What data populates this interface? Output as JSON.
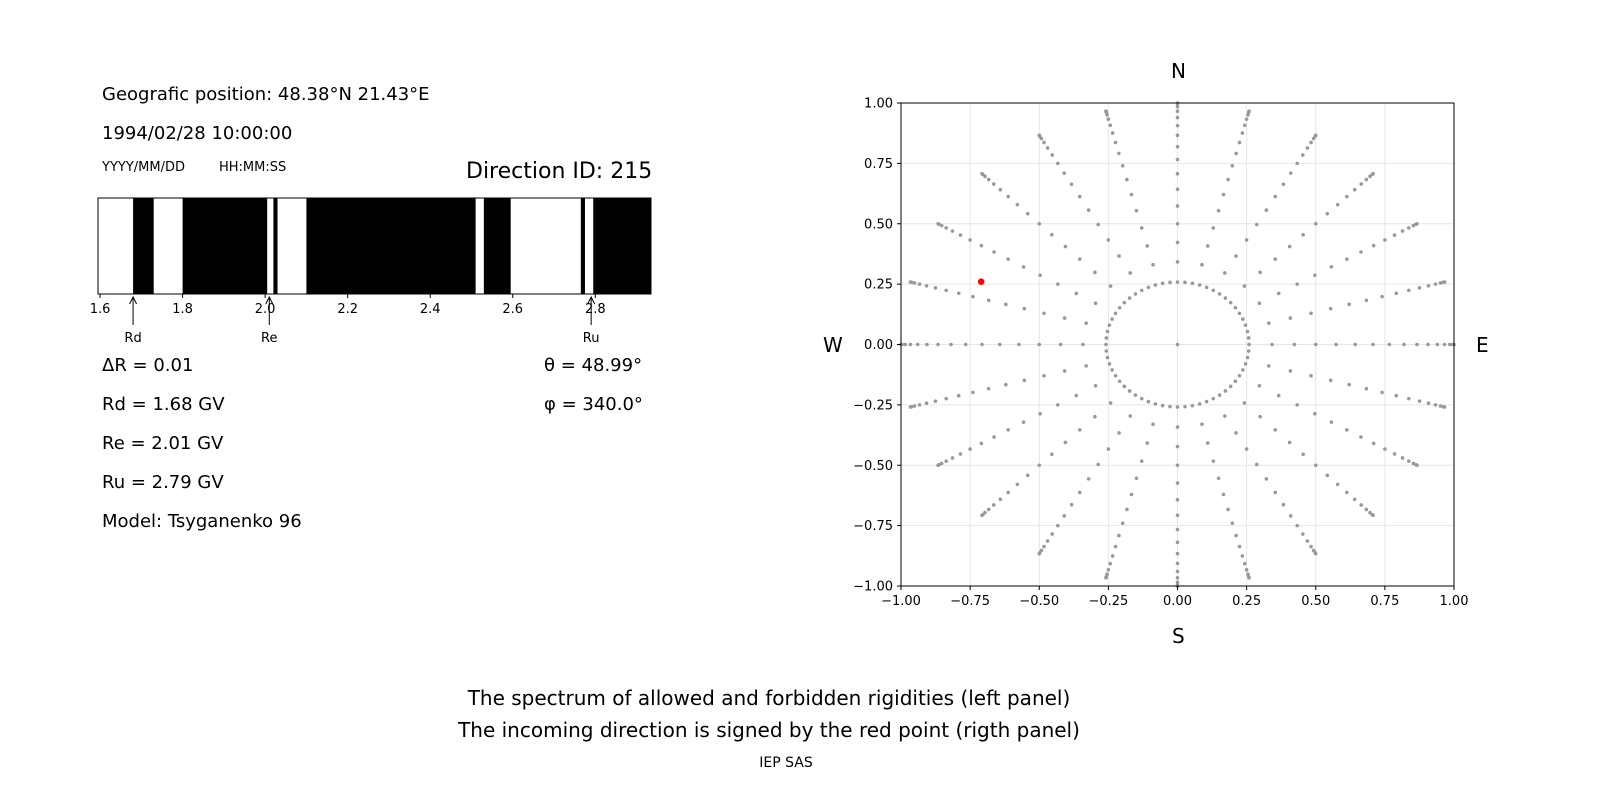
{
  "info": {
    "position": "Geografic position: 48.38°N 21.43°E",
    "datetime": "1994/02/28 10:00:00",
    "date_format": "YYYY/MM/DD",
    "time_format": "HH:MM:SS",
    "direction_id": "Direction ID: 215",
    "delta_r": "ΔR = 0.01",
    "rd": "Rd = 1.68 GV",
    "re": "Re = 2.01 GV",
    "ru": "Ru = 2.79 GV",
    "model": "Model: Tsyganenko 96",
    "theta": "θ = 48.99°",
    "phi": "φ = 340.0°"
  },
  "footer": {
    "caption_line1": "The spectrum of allowed and forbidden rigidities (left panel)",
    "caption_line2": "The incoming direction is signed by the red point (rigth panel)",
    "credit": "IEP SAS"
  },
  "compass": {
    "north": "N",
    "south": "S",
    "west": "W",
    "east": "E"
  },
  "chart_data": [
    {
      "type": "spectrum",
      "xlim": [
        1.595,
        2.935
      ],
      "ticks": [
        1.6,
        1.8,
        2.0,
        2.2,
        2.4,
        2.6,
        2.8
      ],
      "tick_labels": [
        "1.6",
        "1.8",
        "2.0",
        "2.2",
        "2.4",
        "2.6",
        "2.8"
      ],
      "forbidden_bands": [
        [
          1.68,
          1.73
        ],
        [
          1.8,
          2.005
        ],
        [
          2.02,
          2.03
        ],
        [
          2.1,
          2.51
        ],
        [
          2.53,
          2.595
        ],
        [
          2.765,
          2.775
        ],
        [
          2.795,
          2.935
        ]
      ],
      "markers": [
        {
          "name": "Rd",
          "value": 1.68
        },
        {
          "name": "Re",
          "value": 2.01
        },
        {
          "name": "Ru",
          "value": 2.79
        }
      ]
    },
    {
      "type": "scatter",
      "xlim": [
        -1.0,
        1.0
      ],
      "ylim": [
        -1.0,
        1.0
      ],
      "ticks": [
        -1.0,
        -0.75,
        -0.5,
        -0.25,
        0.0,
        0.25,
        0.5,
        0.75,
        1.0
      ],
      "tick_labels": [
        "−1.00",
        "−0.75",
        "−0.50",
        "−0.25",
        "0.00",
        "0.25",
        "0.50",
        "0.75",
        "1.00"
      ],
      "grid": true,
      "grid_directions": {
        "zenith_step_deg": 5,
        "zenith_max_deg": 90,
        "azimuth_step_deg": 15,
        "inner_ring_zenith_deg": 15,
        "point_color": "#999999"
      },
      "highlight": {
        "x": -0.71,
        "y": 0.26,
        "color": "#ff0000"
      }
    }
  ]
}
